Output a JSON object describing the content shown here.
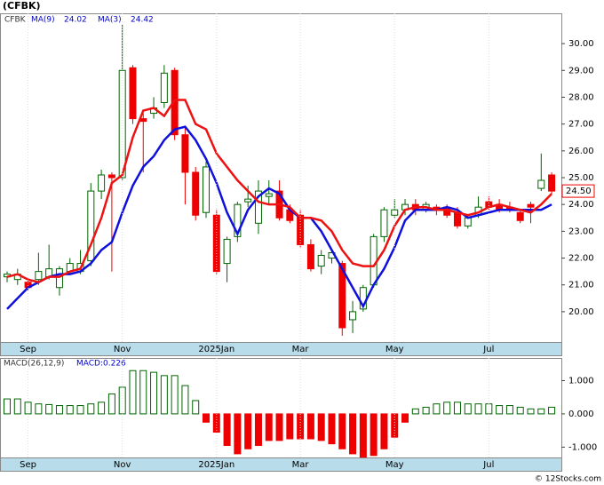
{
  "title": "(CFBK)",
  "footer": "© 12Stocks.com",
  "chart_data": [
    {
      "type": "candlestick",
      "ticker": "CFBK",
      "open": [
        21.3,
        21.2,
        21.1,
        21.2,
        21.3,
        20.9,
        21.5,
        21.5,
        21.9,
        24.5,
        25.1,
        25.0,
        29.1,
        27.2,
        27.4,
        27.8,
        29.0,
        26.6,
        25.2,
        23.7,
        23.6,
        21.8,
        22.8,
        24.1,
        23.3,
        24.3,
        24.5,
        23.8,
        23.6,
        22.5,
        21.7,
        22.0,
        21.8,
        19.7,
        20.1,
        21.0,
        22.8,
        23.6,
        23.8,
        24.0,
        23.8,
        23.9,
        23.9,
        23.7,
        23.2,
        23.6,
        24.1,
        24.0,
        23.9,
        23.7,
        24.0,
        24.6,
        25.1
      ],
      "high": [
        21.5,
        21.6,
        21.2,
        22.2,
        22.5,
        21.7,
        22.0,
        22.3,
        24.8,
        25.3,
        25.2,
        30.7,
        29.2,
        27.4,
        28.0,
        29.2,
        29.1,
        26.9,
        25.4,
        25.6,
        23.8,
        22.8,
        24.1,
        24.7,
        24.9,
        24.9,
        24.9,
        24.0,
        23.8,
        22.7,
        22.3,
        22.3,
        21.9,
        20.4,
        21.0,
        22.9,
        23.9,
        24.2,
        24.2,
        24.2,
        24.1,
        24.0,
        24.0,
        23.9,
        23.6,
        24.3,
        24.3,
        24.2,
        24.1,
        23.8,
        24.1,
        25.9,
        25.2
      ],
      "low": [
        21.1,
        21.0,
        20.8,
        21.0,
        21.2,
        20.6,
        21.4,
        21.4,
        21.7,
        24.2,
        21.5,
        24.9,
        27.0,
        25.2,
        27.2,
        27.6,
        26.4,
        24.0,
        23.4,
        23.5,
        21.4,
        21.1,
        22.6,
        23.9,
        22.9,
        24.0,
        23.4,
        23.3,
        22.4,
        21.5,
        21.4,
        21.8,
        19.1,
        19.2,
        20.0,
        20.9,
        22.6,
        23.5,
        23.6,
        23.6,
        23.7,
        23.6,
        23.5,
        23.1,
        23.1,
        23.5,
        23.8,
        23.7,
        23.7,
        23.3,
        23.3,
        24.5,
        24.4
      ],
      "close": [
        21.4,
        21.4,
        20.9,
        21.5,
        21.6,
        21.6,
        21.8,
        21.8,
        24.5,
        25.1,
        25.0,
        29.0,
        27.2,
        27.1,
        27.6,
        28.9,
        26.6,
        25.2,
        23.6,
        25.4,
        21.5,
        22.7,
        24.0,
        24.2,
        24.5,
        24.4,
        23.5,
        23.4,
        22.5,
        21.6,
        22.1,
        22.2,
        19.4,
        20.0,
        20.9,
        22.8,
        23.8,
        23.8,
        24.0,
        23.8,
        24.0,
        23.8,
        23.6,
        23.2,
        23.5,
        23.9,
        23.9,
        23.8,
        23.8,
        23.4,
        23.9,
        24.9,
        24.5
      ],
      "series": [
        {
          "name": "MA(9)",
          "legend_value": 24.02,
          "color": "#1010dd",
          "values": [
            20.1,
            20.5,
            20.9,
            21.1,
            21.3,
            21.4,
            21.4,
            21.5,
            21.8,
            22.3,
            22.6,
            23.7,
            24.7,
            25.4,
            25.8,
            26.4,
            26.8,
            26.9,
            26.4,
            25.7,
            24.8,
            23.7,
            22.9,
            23.8,
            24.3,
            24.6,
            24.4,
            23.8,
            23.5,
            23.5,
            23.0,
            22.3,
            21.6,
            20.9,
            20.2,
            21.0,
            21.6,
            22.4,
            23.4,
            23.8,
            23.8,
            23.8,
            23.9,
            23.8,
            23.5,
            23.6,
            23.7,
            23.8,
            23.8,
            23.8,
            23.8,
            23.8,
            24.0
          ]
        },
        {
          "name": "MA(3)",
          "legend_value": 24.42,
          "color": "#ee1111",
          "values": [
            21.3,
            21.4,
            21.2,
            21.1,
            21.3,
            21.3,
            21.5,
            21.6,
            22.5,
            23.5,
            24.8,
            25.1,
            26.5,
            27.5,
            27.6,
            27.3,
            27.9,
            27.9,
            27.0,
            26.8,
            25.9,
            25.4,
            24.9,
            24.5,
            24.1,
            24.0,
            24.0,
            23.9,
            23.5,
            23.5,
            23.4,
            23.0,
            22.3,
            21.8,
            21.7,
            21.7,
            22.3,
            23.2,
            23.8,
            23.9,
            23.9,
            23.8,
            23.8,
            23.7,
            23.6,
            23.7,
            23.9,
            24.0,
            23.9,
            23.8,
            23.7,
            24.0,
            24.4
          ]
        }
      ],
      "last_price": {
        "value": 24.5,
        "label": "24.50"
      },
      "ylim": [
        18.87,
        31.13
      ],
      "yticks": [
        {
          "value": 20,
          "label": "20.00"
        },
        {
          "value": 21,
          "label": "21.00"
        },
        {
          "value": 22,
          "label": "22.00"
        },
        {
          "value": 23,
          "label": "23.00"
        },
        {
          "value": 24,
          "label": "24.00"
        },
        {
          "value": 25,
          "label": "25.00"
        },
        {
          "value": 26,
          "label": "26.00"
        },
        {
          "value": 27,
          "label": "27.00"
        },
        {
          "value": 28,
          "label": "28.00"
        },
        {
          "value": 29,
          "label": "29.00"
        },
        {
          "value": 30,
          "label": "30.00"
        }
      ],
      "xticks": [
        {
          "value": 2,
          "label": "Sep"
        },
        {
          "value": 11,
          "label": "Nov"
        },
        {
          "value": 20,
          "label": "2025Jan"
        },
        {
          "value": 28,
          "label": "Mar"
        },
        {
          "value": 37,
          "label": "May"
        },
        {
          "value": 46,
          "label": "Jul"
        }
      ],
      "up_color": "#006400",
      "down_color": "#ee0000"
    },
    {
      "type": "bar",
      "name": "MACD(26,12,9)",
      "legend": "MACD:0.226",
      "values": [
        0.45,
        0.45,
        0.35,
        0.3,
        0.28,
        0.25,
        0.25,
        0.25,
        0.3,
        0.35,
        0.6,
        0.8,
        1.3,
        1.3,
        1.25,
        1.15,
        1.15,
        0.85,
        0.4,
        -0.25,
        -0.55,
        -0.95,
        -1.2,
        -1.05,
        -0.95,
        -0.8,
        -0.8,
        -0.75,
        -0.75,
        -0.75,
        -0.8,
        -0.9,
        -1.05,
        -1.2,
        -1.3,
        -1.25,
        -1.05,
        -0.7,
        -0.25,
        0.15,
        0.2,
        0.3,
        0.35,
        0.35,
        0.3,
        0.3,
        0.3,
        0.25,
        0.25,
        0.2,
        0.15,
        0.15,
        0.2
      ],
      "ylim": [
        -1.31,
        1.68
      ],
      "yticks": [
        {
          "value": 1,
          "label": "1.000"
        },
        {
          "value": 0,
          "label": "0.000"
        },
        {
          "value": -1,
          "label": "-1.000"
        }
      ],
      "up_color": "#006400",
      "down_color": "#ee0000"
    }
  ]
}
